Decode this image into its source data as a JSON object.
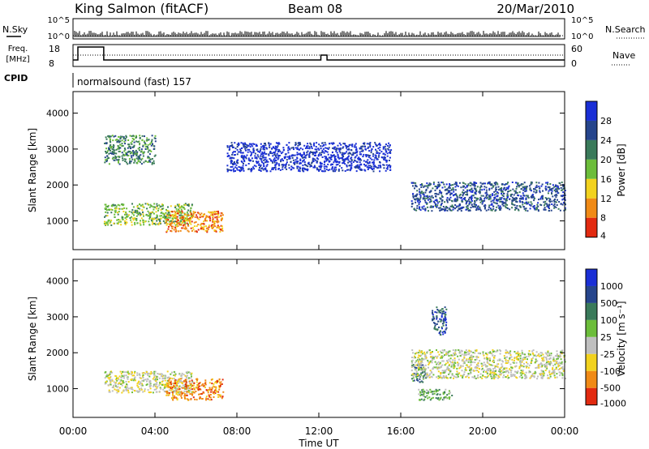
{
  "header": {
    "station": "King Salmon (fitACF)",
    "beam": "Beam 08",
    "date": "20/Mar/2010"
  },
  "top_panel": {
    "nsky_label": "N.Sky",
    "nsearch_label": "N.Search",
    "freq_label_1": "Freq.",
    "freq_label_2": "[MHz]",
    "nave_label": "Nave",
    "cpid_label": "CPID",
    "cpid_value": "normalsound (fast) 157",
    "noise_ticks_left": [
      "10^5",
      "10^0"
    ],
    "noise_ticks_right": [
      "10^5",
      "10^0"
    ],
    "freq_ticks": [
      "18",
      "8"
    ],
    "nave_ticks": [
      "60",
      "0"
    ]
  },
  "chart_data": [
    {
      "type": "heatmap",
      "panel": "power",
      "ylabel": "Slant Range [km]",
      "yticks": [
        "1000",
        "2000",
        "3000",
        "4000"
      ],
      "ylim": [
        200,
        4600
      ],
      "xlim": [
        "00:00",
        "24:00"
      ],
      "colorbar_label": "Power [dB]",
      "colorbar_ticks": [
        "28",
        "24",
        "20",
        "16",
        "12",
        "8",
        "4"
      ],
      "colors": [
        "#1a2fd6",
        "#26458c",
        "#3a7a5a",
        "#6cbd3a",
        "#f2d21e",
        "#f08a16",
        "#e22a10"
      ],
      "regions": [
        {
          "t0": 1.5,
          "t1": 5.8,
          "r0": 900,
          "r1": 1500,
          "level": 3
        },
        {
          "t0": 4.5,
          "t1": 7.3,
          "r0": 700,
          "r1": 1300,
          "level": 5
        },
        {
          "t0": 1.5,
          "t1": 4.0,
          "r0": 2600,
          "r1": 3400,
          "level": 2
        },
        {
          "t0": 16.5,
          "t1": 24.0,
          "r0": 1300,
          "r1": 2100,
          "level": 1
        },
        {
          "t0": 7.5,
          "t1": 15.5,
          "r0": 2400,
          "r1": 3200,
          "level": 0
        }
      ]
    },
    {
      "type": "heatmap",
      "panel": "velocity",
      "ylabel": "Slant Range [km]",
      "yticks": [
        "1000",
        "2000",
        "3000",
        "4000"
      ],
      "ylim": [
        200,
        4600
      ],
      "xlim": [
        "00:00",
        "24:00"
      ],
      "xticks": [
        "00:00",
        "04:00",
        "08:00",
        "12:00",
        "16:00",
        "20:00",
        "00:00"
      ],
      "xlabel": "Time UT",
      "colorbar_label": "Velocity [m s⁻¹]",
      "colorbar_ticks": [
        "1000",
        "500",
        "100",
        "25",
        "-25",
        "-100",
        "-500",
        "-1000"
      ],
      "colors": [
        "#1a2fd6",
        "#26458c",
        "#3a7a5a",
        "#6cbd3a",
        "#bfbfbf",
        "#f2d21e",
        "#f08a16",
        "#e22a10"
      ],
      "regions": [
        {
          "t0": 1.5,
          "t1": 5.8,
          "r0": 900,
          "r1": 1500,
          "level": 4
        },
        {
          "t0": 4.5,
          "t1": 7.3,
          "r0": 700,
          "r1": 1300,
          "level": 6
        },
        {
          "t0": 16.5,
          "t1": 17.2,
          "r0": 1200,
          "r1": 1700,
          "level": 2
        },
        {
          "t0": 16.8,
          "t1": 18.5,
          "r0": 700,
          "r1": 1000,
          "level": 3
        },
        {
          "t0": 17.5,
          "t1": 18.2,
          "r0": 2500,
          "r1": 3300,
          "level": 1
        },
        {
          "t0": 16.5,
          "t1": 24.0,
          "r0": 1300,
          "r1": 2100,
          "level": 4
        }
      ]
    }
  ]
}
